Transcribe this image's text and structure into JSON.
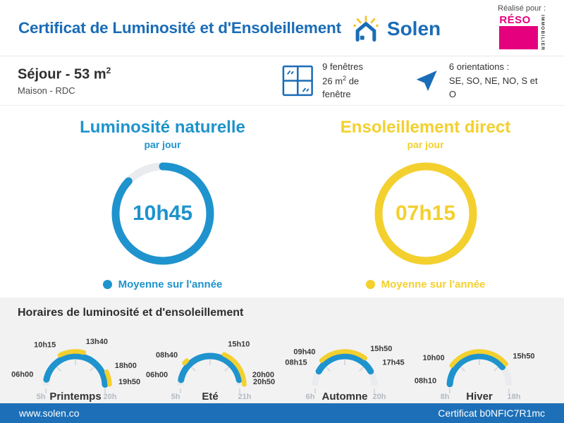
{
  "palette": {
    "primary_blue": "#1a6cb7",
    "cyan": "#1e93cd",
    "yellow": "#f3d02e",
    "magenta": "#e5007d",
    "footer_blue": "#1d70b7",
    "track_gray": "#e9ebee"
  },
  "header": {
    "title": "Certificat de Luminosité et d'Ensoleillement",
    "brand": "Solen",
    "realise_pour": "Réalisé pour :",
    "partner_name": "RÉSO",
    "partner_sub": "IMMOBILIER"
  },
  "property": {
    "title": "Séjour - 53 m",
    "title_sup": "2",
    "subtitle": "Maison - RDC",
    "windows_line1": "9 fenêtres",
    "windows_line2_pre": "26 m",
    "windows_line2_sup": "2",
    "windows_line2_post": " de fenêtre",
    "orientations_line1": "6 orientations :",
    "orientations_line2": "SE, SO, NE, NO, S et O"
  },
  "panel": {
    "title": "Horaires de luminosité et d'ensoleillement"
  },
  "footer": {
    "website": "www.solen.co",
    "certificate": "Certificat b0NFIC7R1mc"
  },
  "chart_data": [
    {
      "type": "donut",
      "title": "Luminosité naturelle",
      "subtitle": "par jour",
      "value": "10h45",
      "fraction": 0.87,
      "color": "#1e93cd",
      "legend": "Moyenne sur l'année"
    },
    {
      "type": "donut",
      "title": "Ensoleillement direct",
      "subtitle": "par jour",
      "value": "07h15",
      "fraction": 1.0,
      "color": "#f3d02e",
      "legend": "Moyenne sur l'année"
    },
    {
      "type": "semicircle_gauge",
      "season": "Printemps",
      "scale": [
        5,
        20
      ],
      "scale_labels": [
        "5h",
        "20h"
      ],
      "light_hours": [
        6.0,
        19.83
      ],
      "sun_hours": [
        [
          10.25,
          13.67
        ],
        [
          18.0,
          19.83
        ]
      ],
      "labels": [
        {
          "t": 6.0,
          "text": "06h00"
        },
        {
          "t": 10.25,
          "text": "10h15"
        },
        {
          "t": 13.67,
          "text": "13h40"
        },
        {
          "t": 18.0,
          "text": "18h00"
        },
        {
          "t": 19.83,
          "text": "19h50"
        }
      ],
      "light_color": "#1e93cd",
      "sun_color": "#f3d02e"
    },
    {
      "type": "semicircle_gauge",
      "season": "Eté",
      "scale": [
        5,
        21
      ],
      "scale_labels": [
        "5h",
        "21h"
      ],
      "light_hours": [
        6.0,
        20.0
      ],
      "sun_hours": [
        [
          8.67,
          9.17
        ],
        [
          15.17,
          20.83
        ]
      ],
      "labels": [
        {
          "t": 6.0,
          "text": "06h00"
        },
        {
          "t": 8.67,
          "text": "08h40"
        },
        {
          "t": 15.17,
          "text": "15h10"
        },
        {
          "t": 20.0,
          "text": "20h00"
        },
        {
          "t": 20.83,
          "text": "20h50"
        }
      ],
      "light_color": "#1e93cd",
      "sun_color": "#f3d02e"
    },
    {
      "type": "semicircle_gauge",
      "season": "Automne",
      "scale": [
        6,
        20
      ],
      "scale_labels": [
        "6h",
        "20h"
      ],
      "light_hours": [
        8.25,
        17.75
      ],
      "sun_hours": [
        [
          9.67,
          15.83
        ]
      ],
      "labels": [
        {
          "t": 8.25,
          "text": "08h15"
        },
        {
          "t": 9.67,
          "text": "09h40"
        },
        {
          "t": 15.83,
          "text": "15h50"
        },
        {
          "t": 17.75,
          "text": "17h45"
        }
      ],
      "light_color": "#1e93cd",
      "sun_color": "#f3d02e"
    },
    {
      "type": "semicircle_gauge",
      "season": "Hiver",
      "scale": [
        8,
        18
      ],
      "scale_labels": [
        "8h",
        "18h"
      ],
      "light_hours": [
        8.17,
        15.83
      ],
      "sun_hours": [
        [
          10.0,
          15.83
        ]
      ],
      "labels": [
        {
          "t": 8.17,
          "text": "08h10"
        },
        {
          "t": 10.0,
          "text": "10h00"
        },
        {
          "t": 15.83,
          "text": "15h50"
        }
      ],
      "light_color": "#1e93cd",
      "sun_color": "#f3d02e"
    }
  ]
}
